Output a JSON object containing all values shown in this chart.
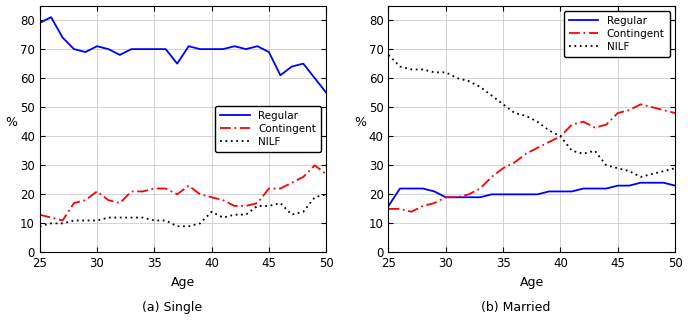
{
  "age": [
    25,
    26,
    27,
    28,
    29,
    30,
    31,
    32,
    33,
    34,
    35,
    36,
    37,
    38,
    39,
    40,
    41,
    42,
    43,
    44,
    45,
    46,
    47,
    48,
    49,
    50
  ],
  "single_regular": [
    79,
    81,
    74,
    70,
    69,
    71,
    70,
    68,
    70,
    70,
    70,
    70,
    65,
    71,
    70,
    70,
    70,
    71,
    70,
    71,
    69,
    61,
    64,
    65,
    60,
    55
  ],
  "single_contingent": [
    13,
    12,
    11,
    17,
    18,
    21,
    18,
    17,
    21,
    21,
    22,
    22,
    20,
    23,
    20,
    19,
    18,
    16,
    16,
    17,
    22,
    22,
    24,
    26,
    30,
    27
  ],
  "single_nilf": [
    9,
    10,
    10,
    11,
    11,
    11,
    12,
    12,
    12,
    12,
    11,
    11,
    9,
    9,
    10,
    14,
    12,
    13,
    13,
    16,
    16,
    17,
    13,
    14,
    19,
    20
  ],
  "married_regular": [
    16,
    22,
    22,
    22,
    21,
    19,
    19,
    19,
    19,
    20,
    20,
    20,
    20,
    20,
    21,
    21,
    21,
    22,
    22,
    22,
    23,
    23,
    24,
    24,
    24,
    23
  ],
  "married_contingent": [
    15,
    15,
    14,
    16,
    17,
    19,
    19,
    20,
    22,
    26,
    29,
    31,
    34,
    36,
    38,
    40,
    44,
    45,
    43,
    44,
    48,
    49,
    51,
    50,
    49,
    48
  ],
  "married_nilf": [
    68,
    64,
    63,
    63,
    62,
    62,
    60,
    59,
    57,
    54,
    51,
    48,
    47,
    45,
    42,
    40,
    35,
    34,
    35,
    30,
    29,
    28,
    26,
    27,
    28,
    29
  ],
  "caption_left": "(a) Single",
  "caption_right": "(b) Married",
  "xlabel": "Age",
  "ylabel": "%",
  "ylim": [
    0,
    85
  ],
  "xlim": [
    25,
    50
  ],
  "yticks": [
    0,
    10,
    20,
    30,
    40,
    50,
    60,
    70,
    80
  ],
  "xticks": [
    25,
    30,
    35,
    40,
    45,
    50
  ],
  "legend_labels": [
    "Regular",
    "Contingent",
    "NILF"
  ],
  "grid_color": "#cccccc",
  "fig_width": 6.88,
  "fig_height": 3.2,
  "line_width": 1.3
}
